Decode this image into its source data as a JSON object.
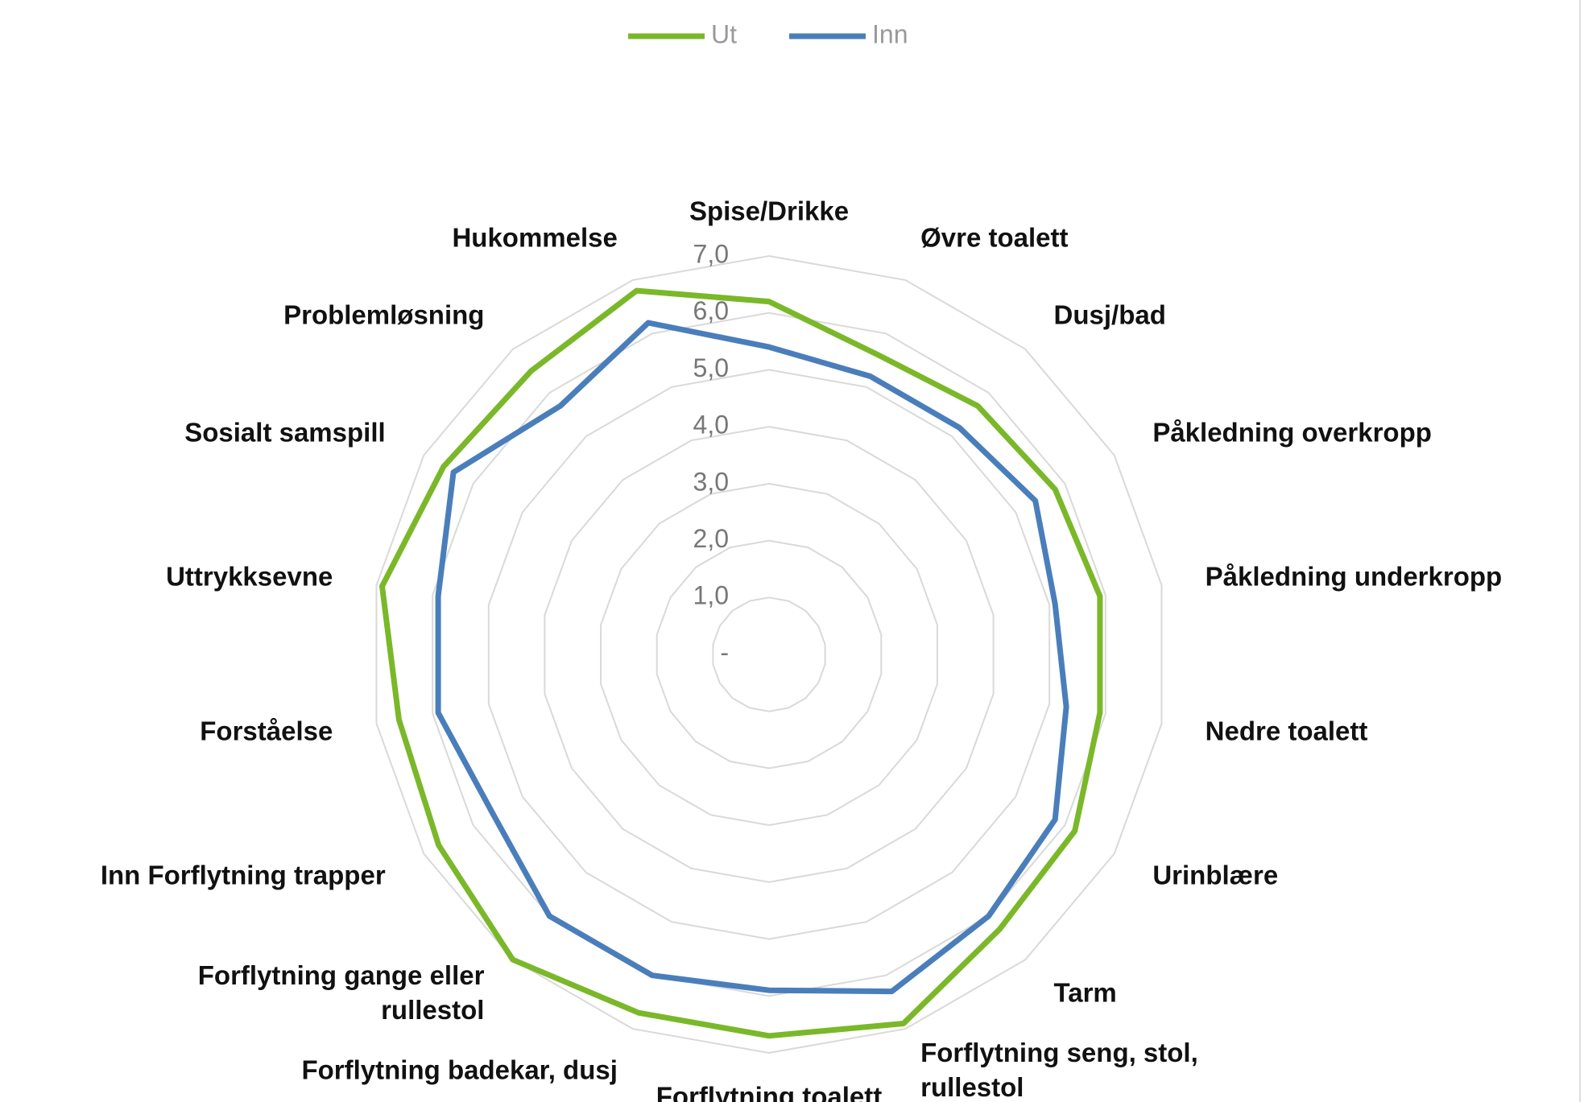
{
  "chart_data": {
    "type": "radar",
    "categories": [
      "Spise/Drikke",
      "Øvre toalett",
      "Dusj/bad",
      "Påkledning overkropp",
      "Påkledning underkropp",
      "Nedre toalett",
      "Urinblære",
      "Tarm",
      "Forflytning seng, stol, rullestol",
      "Forflytning toalett",
      "Forflytning badekar, dusj",
      "Forflytning gange eller rullestol",
      "Inn Forflytning trapper",
      "Forståelse",
      "Uttrykksevne",
      "Sosialt samspill",
      "Problemløsning",
      "Hukommelse"
    ],
    "series": [
      {
        "name": "Ut",
        "color": "#7ab829",
        "values": [
          6.2,
          5.6,
          5.7,
          5.8,
          5.9,
          5.9,
          6.2,
          6.3,
          6.9,
          6.7,
          6.7,
          7.0,
          6.7,
          6.6,
          6.9,
          6.6,
          6.5,
          6.8
        ]
      },
      {
        "name": "Inn",
        "color": "#4a7ebb",
        "values": [
          5.4,
          5.2,
          5.2,
          5.4,
          5.1,
          5.3,
          5.8,
          6.0,
          6.3,
          5.9,
          6.0,
          6.0,
          5.6,
          5.9,
          5.9,
          6.4,
          5.7,
          6.2
        ]
      }
    ],
    "ylim": [
      0,
      7
    ],
    "yticks": [
      {
        "value": 0,
        "label": "-"
      },
      {
        "value": 1,
        "label": "1,0"
      },
      {
        "value": 2,
        "label": "2,0"
      },
      {
        "value": 3,
        "label": "3,0"
      },
      {
        "value": 4,
        "label": "4,0"
      },
      {
        "value": 5,
        "label": "5,0"
      },
      {
        "value": 6,
        "label": "6,0"
      },
      {
        "value": 7,
        "label": "7,0"
      }
    ],
    "grid": true,
    "legend": "top"
  }
}
